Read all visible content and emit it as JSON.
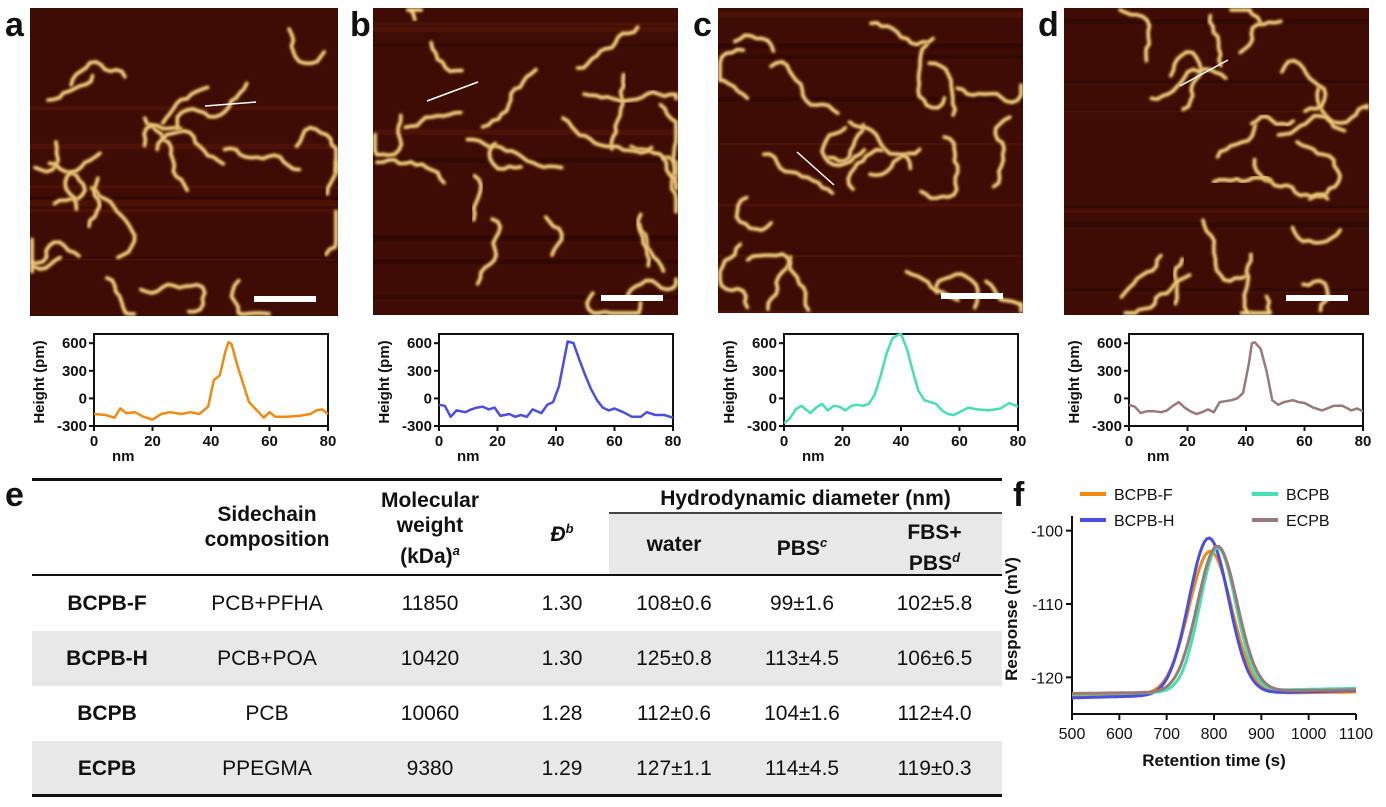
{
  "panels": {
    "a": {
      "letter": "a",
      "color": "#f28a10",
      "afm_seed": 11,
      "line": {
        "x1": 205,
        "y1": 106,
        "x2": 256,
        "y2": 102
      },
      "scalebar": {
        "x": 254,
        "y": 296,
        "w": 62
      }
    },
    "b": {
      "letter": "b",
      "color": "#4a4ee3",
      "afm_seed": 23,
      "line": {
        "x1": 427,
        "y1": 101,
        "x2": 478,
        "y2": 82
      },
      "scalebar": {
        "x": 601,
        "y": 295,
        "w": 62
      }
    },
    "c": {
      "letter": "c",
      "color": "#45e0b0",
      "afm_seed": 37,
      "line": {
        "x1": 797,
        "y1": 152,
        "x2": 834,
        "y2": 185
      },
      "scalebar": {
        "x": 941,
        "y": 293,
        "w": 62
      }
    },
    "d": {
      "letter": "d",
      "color": "#9a7a78",
      "afm_seed": 53,
      "line": {
        "x1": 1180,
        "y1": 86,
        "x2": 1228,
        "y2": 60
      },
      "scalebar": {
        "x": 1286,
        "y": 295,
        "w": 62
      }
    }
  },
  "profiles": {
    "ylabel": "Height (pm)",
    "xlabel": "nm",
    "xticks": [
      "0",
      "20",
      "40",
      "60",
      "80"
    ],
    "yticks": [
      "600",
      "300",
      "0",
      "-300"
    ],
    "xrange": [
      0,
      80
    ],
    "yrange": [
      -300,
      700
    ],
    "series": {
      "a": [
        [
          0,
          -170
        ],
        [
          4,
          -180
        ],
        [
          7,
          -210
        ],
        [
          9,
          -110
        ],
        [
          11,
          -160
        ],
        [
          14,
          -150
        ],
        [
          17,
          -200
        ],
        [
          20,
          -230
        ],
        [
          23,
          -170
        ],
        [
          26,
          -150
        ],
        [
          30,
          -170
        ],
        [
          33,
          -150
        ],
        [
          36,
          -170
        ],
        [
          39,
          -90
        ],
        [
          41,
          200
        ],
        [
          43,
          250
        ],
        [
          45,
          520
        ],
        [
          46,
          610
        ],
        [
          47,
          590
        ],
        [
          49,
          360
        ],
        [
          51,
          160
        ],
        [
          53,
          -40
        ],
        [
          56,
          -140
        ],
        [
          58,
          -210
        ],
        [
          60,
          -150
        ],
        [
          62,
          -200
        ],
        [
          66,
          -200
        ],
        [
          70,
          -190
        ],
        [
          74,
          -170
        ],
        [
          76,
          -130
        ],
        [
          78,
          -120
        ],
        [
          80,
          -170
        ]
      ],
      "b": [
        [
          0,
          -70
        ],
        [
          2,
          -80
        ],
        [
          4,
          -200
        ],
        [
          6,
          -130
        ],
        [
          9,
          -150
        ],
        [
          11,
          -120
        ],
        [
          13,
          -100
        ],
        [
          15,
          -90
        ],
        [
          17,
          -120
        ],
        [
          19,
          -100
        ],
        [
          21,
          -190
        ],
        [
          24,
          -170
        ],
        [
          26,
          -200
        ],
        [
          28,
          -180
        ],
        [
          30,
          -200
        ],
        [
          32,
          -120
        ],
        [
          35,
          -160
        ],
        [
          37,
          -70
        ],
        [
          39,
          -40
        ],
        [
          41,
          130
        ],
        [
          43,
          460
        ],
        [
          44,
          620
        ],
        [
          46,
          600
        ],
        [
          48,
          420
        ],
        [
          50,
          250
        ],
        [
          52,
          100
        ],
        [
          54,
          -20
        ],
        [
          56,
          -100
        ],
        [
          58,
          -130
        ],
        [
          60,
          -110
        ],
        [
          63,
          -150
        ],
        [
          66,
          -200
        ],
        [
          69,
          -200
        ],
        [
          71,
          -150
        ],
        [
          74,
          -180
        ],
        [
          77,
          -180
        ],
        [
          80,
          -210
        ]
      ],
      "c": [
        [
          0,
          -270
        ],
        [
          2,
          -220
        ],
        [
          4,
          -120
        ],
        [
          6,
          -80
        ],
        [
          9,
          -160
        ],
        [
          11,
          -100
        ],
        [
          13,
          -60
        ],
        [
          15,
          -130
        ],
        [
          17,
          -80
        ],
        [
          19,
          -90
        ],
        [
          21,
          -130
        ],
        [
          23,
          -80
        ],
        [
          25,
          -70
        ],
        [
          27,
          -80
        ],
        [
          29,
          -60
        ],
        [
          31,
          40
        ],
        [
          33,
          240
        ],
        [
          35,
          480
        ],
        [
          37,
          650
        ],
        [
          39,
          690
        ],
        [
          40,
          700
        ],
        [
          42,
          540
        ],
        [
          44,
          300
        ],
        [
          46,
          80
        ],
        [
          48,
          -20
        ],
        [
          50,
          -40
        ],
        [
          52,
          -60
        ],
        [
          54,
          -130
        ],
        [
          56,
          -170
        ],
        [
          58,
          -180
        ],
        [
          60,
          -150
        ],
        [
          63,
          -100
        ],
        [
          66,
          -120
        ],
        [
          70,
          -130
        ],
        [
          74,
          -110
        ],
        [
          77,
          -50
        ],
        [
          80,
          -90
        ]
      ],
      "d": [
        [
          0,
          -70
        ],
        [
          2,
          -90
        ],
        [
          4,
          -160
        ],
        [
          6,
          -140
        ],
        [
          9,
          -140
        ],
        [
          11,
          -150
        ],
        [
          13,
          -130
        ],
        [
          15,
          -80
        ],
        [
          17,
          -40
        ],
        [
          19,
          -100
        ],
        [
          21,
          -140
        ],
        [
          23,
          -170
        ],
        [
          25,
          -150
        ],
        [
          27,
          -120
        ],
        [
          29,
          -150
        ],
        [
          31,
          -40
        ],
        [
          33,
          -30
        ],
        [
          35,
          -20
        ],
        [
          37,
          0
        ],
        [
          39,
          60
        ],
        [
          41,
          380
        ],
        [
          42,
          600
        ],
        [
          43,
          610
        ],
        [
          45,
          540
        ],
        [
          47,
          300
        ],
        [
          49,
          -20
        ],
        [
          51,
          -70
        ],
        [
          53,
          -40
        ],
        [
          56,
          -20
        ],
        [
          58,
          -40
        ],
        [
          60,
          -50
        ],
        [
          63,
          -100
        ],
        [
          66,
          -130
        ],
        [
          70,
          -80
        ],
        [
          73,
          -80
        ],
        [
          76,
          -130
        ],
        [
          78,
          -110
        ],
        [
          80,
          -140
        ]
      ]
    }
  },
  "table": {
    "letter": "e",
    "headers": {
      "sidechain": [
        "Sidechain",
        "composition"
      ],
      "mw": [
        "Molecular",
        "weight",
        "(kDa)"
      ],
      "mw_sup": "a",
      "d": "Đ",
      "d_sup": "b",
      "hydro": "Hydrodynamic diameter (nm)",
      "water": "water",
      "pbs": "PBS",
      "pbs_sup": "c",
      "fbs1": "FBS+",
      "fbs2": "PBS",
      "fbs_sup": "d"
    },
    "rows": [
      {
        "name": "BCPB-F",
        "sidechain": "PCB+PFHA",
        "mw": "11850",
        "d": "1.30",
        "water": "108±0.6",
        "pbs": "99±1.6",
        "fbs": "102±5.8",
        "shaded": false
      },
      {
        "name": "BCPB-H",
        "sidechain": "PCB+POA",
        "mw": "10420",
        "d": "1.30",
        "water": "125±0.8",
        "pbs": "113±4.5",
        "fbs": "106±6.5",
        "shaded": true
      },
      {
        "name": "BCPB",
        "sidechain": "PCB",
        "mw": "10060",
        "d": "1.28",
        "water": "112±0.6",
        "pbs": "104±1.6",
        "fbs": "112±4.0",
        "shaded": false
      },
      {
        "name": "ECPB",
        "sidechain": "PPEGMA",
        "mw": "9380",
        "d": "1.29",
        "water": "127±1.1",
        "pbs": "114±4.5",
        "fbs": "119±0.3",
        "shaded": true
      }
    ]
  },
  "chart_data": {
    "type": "line",
    "letter": "f",
    "title": "",
    "xlabel": "Retention time (s)",
    "ylabel": "Response (mV)",
    "xlim": [
      500,
      1100
    ],
    "ylim": [
      -125,
      -98
    ],
    "xticks": [
      500,
      600,
      700,
      800,
      900,
      1000,
      1100
    ],
    "yticks": [
      -100,
      -110,
      -120
    ],
    "legend": "top",
    "series": [
      {
        "name": "BCPB-F",
        "color": "#f28a10",
        "base_start": -122.5,
        "base_end": -122.0,
        "peak": -102.8,
        "center": 792,
        "sigma": 45
      },
      {
        "name": "BCPB-H",
        "color": "#4a4ee3",
        "base_start": -122.8,
        "base_end": -121.8,
        "peak": -101.0,
        "center": 789,
        "sigma": 42
      },
      {
        "name": "BCPB",
        "color": "#45e0b0",
        "base_start": -122.3,
        "base_end": -121.5,
        "peak": -102.3,
        "center": 808,
        "sigma": 38
      },
      {
        "name": "ECPB",
        "color": "#9a7a78",
        "base_start": -122.2,
        "base_end": -121.7,
        "peak": -102.1,
        "center": 807,
        "sigma": 42
      }
    ]
  }
}
